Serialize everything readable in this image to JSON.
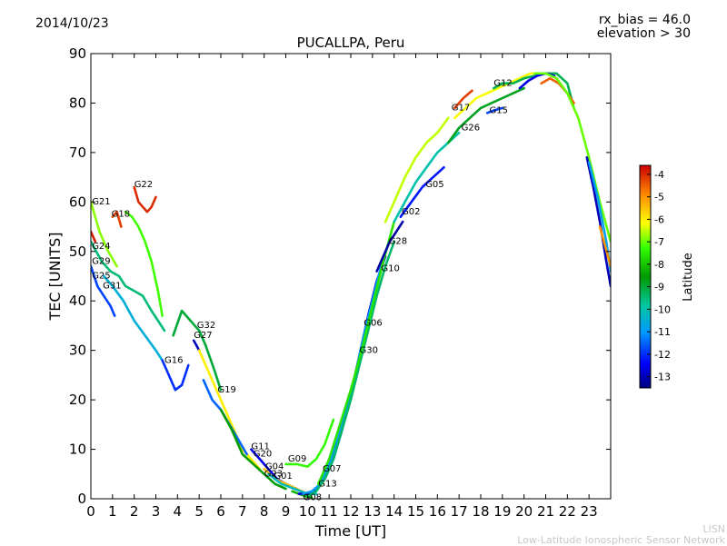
{
  "header": {
    "date": "2014/10/23",
    "bias": "rx_bias = 46.0",
    "elevation": "elevation > 30"
  },
  "footer": {
    "line1": "LISN",
    "line2": "Low-Latitude Ionospheric Sensor Network"
  },
  "chart_data": {
    "type": "scatter",
    "title": "PUCALLPA, Peru",
    "xlabel": "Time [UT]",
    "ylabel": "TEC [UNITS]",
    "xlim": [
      0,
      24
    ],
    "ylim": [
      0,
      90
    ],
    "x_ticks": [
      "0",
      "1",
      "2",
      "3",
      "4",
      "5",
      "6",
      "7",
      "8",
      "9",
      "10",
      "11",
      "12",
      "13",
      "14",
      "15",
      "16",
      "17",
      "18",
      "19",
      "20",
      "21",
      "22",
      "23"
    ],
    "y_ticks": [
      "0",
      "10",
      "20",
      "30",
      "40",
      "50",
      "60",
      "70",
      "80",
      "90"
    ],
    "colorbar": {
      "label": "Latitude",
      "range": [
        -13.5,
        -3.6
      ],
      "ticks": [
        "-4",
        "-5",
        "-6",
        "-7",
        "-8",
        "-9",
        "-10",
        "-11",
        "-12",
        "-13"
      ]
    },
    "satellite_labels": [
      {
        "name": "G21",
        "x": 0.05,
        "y": 59.5
      },
      {
        "name": "G24",
        "x": 0.05,
        "y": 50.5
      },
      {
        "name": "G29",
        "x": 0.05,
        "y": 47.5
      },
      {
        "name": "G25",
        "x": 0.05,
        "y": 44.5
      },
      {
        "name": "G31",
        "x": 0.55,
        "y": 42.5
      },
      {
        "name": "G18",
        "x": 0.95,
        "y": 57.0
      },
      {
        "name": "G22",
        "x": 2.0,
        "y": 63.0
      },
      {
        "name": "G16",
        "x": 3.4,
        "y": 27.5
      },
      {
        "name": "G32",
        "x": 4.9,
        "y": 34.5
      },
      {
        "name": "G27",
        "x": 4.75,
        "y": 32.5
      },
      {
        "name": "G19",
        "x": 5.85,
        "y": 21.5
      },
      {
        "name": "G11",
        "x": 7.4,
        "y": 10.0
      },
      {
        "name": "G20",
        "x": 7.5,
        "y": 8.5
      },
      {
        "name": "G04",
        "x": 8.05,
        "y": 6.0
      },
      {
        "name": "G23",
        "x": 8.0,
        "y": 4.5
      },
      {
        "name": "G01",
        "x": 8.45,
        "y": 4.0
      },
      {
        "name": "G09",
        "x": 9.1,
        "y": 7.5
      },
      {
        "name": "G07",
        "x": 10.7,
        "y": 5.5
      },
      {
        "name": "G13",
        "x": 10.5,
        "y": 2.5
      },
      {
        "name": "G08",
        "x": 9.8,
        "y": -0.3
      },
      {
        "name": "G30",
        "x": 12.4,
        "y": 29.5
      },
      {
        "name": "G06",
        "x": 12.6,
        "y": 35.0
      },
      {
        "name": "G10",
        "x": 13.4,
        "y": 46.0
      },
      {
        "name": "G28",
        "x": 13.75,
        "y": 51.5
      },
      {
        "name": "G02",
        "x": 14.35,
        "y": 57.5
      },
      {
        "name": "G05",
        "x": 15.45,
        "y": 63.0
      },
      {
        "name": "G26",
        "x": 17.1,
        "y": 74.5
      },
      {
        "name": "G17",
        "x": 16.65,
        "y": 78.5
      },
      {
        "name": "G15",
        "x": 18.4,
        "y": 78.0
      },
      {
        "name": "G12",
        "x": 18.6,
        "y": 83.5
      }
    ],
    "series": [
      {
        "name": "G21",
        "lat": -6.8,
        "x": [
          0.0,
          0.4,
          0.8,
          1.2
        ],
        "y": [
          60,
          54,
          50,
          47
        ]
      },
      {
        "name": "G24",
        "lat": -3.9,
        "x": [
          0.0,
          0.2
        ],
        "y": [
          54,
          52
        ]
      },
      {
        "name": "G29",
        "lat": -9.5,
        "x": [
          0.0,
          0.5,
          0.9,
          1.3,
          1.6,
          2.0,
          2.4,
          2.8,
          3.1,
          3.4
        ],
        "y": [
          52,
          48,
          46,
          45,
          43,
          42,
          41,
          38,
          36,
          34
        ]
      },
      {
        "name": "G25",
        "lat": -11.8,
        "x": [
          0.0,
          0.3,
          0.6,
          0.9,
          1.1
        ],
        "y": [
          47,
          43,
          41,
          39,
          37
        ]
      },
      {
        "name": "G31",
        "lat": -10.5,
        "x": [
          0.6,
          1.0,
          1.5,
          2.0,
          2.5,
          3.0,
          3.3
        ],
        "y": [
          45,
          43,
          40,
          36,
          33,
          30,
          28
        ]
      },
      {
        "name": "G18",
        "lat": -4.2,
        "x": [
          1.0,
          1.2,
          1.4
        ],
        "y": [
          57,
          58,
          55
        ]
      },
      {
        "name": "G22",
        "lat": -4.0,
        "x": [
          2.0,
          2.2,
          2.4,
          2.6,
          2.8,
          3.0
        ],
        "y": [
          63,
          60,
          59,
          58,
          59,
          61
        ]
      },
      {
        "name": "G18b",
        "lat": -7.2,
        "x": [
          1.6,
          1.9,
          2.2,
          2.5,
          2.8,
          3.1,
          3.3
        ],
        "y": [
          58,
          57,
          55,
          52,
          48,
          42,
          37
        ]
      },
      {
        "name": "G16",
        "lat": -12.0,
        "x": [
          3.3,
          3.6,
          3.9,
          4.2,
          4.5
        ],
        "y": [
          28,
          25,
          22,
          23,
          27
        ]
      },
      {
        "name": "G32",
        "lat": -9.0,
        "x": [
          3.8,
          4.2,
          4.6,
          5.0,
          5.3,
          5.7,
          6.0
        ],
        "y": [
          33,
          38,
          36,
          34,
          31,
          26,
          22
        ]
      },
      {
        "name": "G27",
        "lat": -13.0,
        "x": [
          4.75,
          5.0
        ],
        "y": [
          32,
          30
        ]
      },
      {
        "name": "G19",
        "lat": -6.0,
        "x": [
          5.0,
          5.4,
          5.8,
          6.2,
          6.6,
          7.0,
          7.4,
          7.8
        ],
        "y": [
          30,
          26,
          22,
          18,
          14,
          10,
          8,
          6
        ]
      },
      {
        "name": "G23",
        "lat": -11.5,
        "x": [
          5.2,
          5.6,
          6.0,
          6.4,
          6.8,
          7.2
        ],
        "y": [
          24,
          20,
          18,
          15,
          12,
          9
        ]
      },
      {
        "name": "G11",
        "lat": -8.5,
        "x": [
          6.0,
          6.5,
          7.0,
          7.5,
          8.0,
          8.5,
          9.0
        ],
        "y": [
          18,
          14,
          9,
          7,
          5,
          3,
          2
        ]
      },
      {
        "name": "G20",
        "lat": -12.5,
        "x": [
          7.4,
          7.8,
          8.2,
          8.6,
          9.0,
          9.5
        ],
        "y": [
          10,
          8,
          6,
          4,
          3,
          2
        ]
      },
      {
        "name": "G04",
        "lat": -5.5,
        "x": [
          8.0,
          8.5,
          9.0,
          9.5,
          10.0
        ],
        "y": [
          6,
          4,
          3,
          2,
          1
        ]
      },
      {
        "name": "G01",
        "lat": -10.2,
        "x": [
          8.2,
          8.8,
          9.4,
          10.0,
          10.4
        ],
        "y": [
          5,
          3,
          2,
          1,
          1
        ]
      },
      {
        "name": "G09",
        "lat": -7.3,
        "x": [
          9.0,
          9.5,
          10.0,
          10.4,
          10.8,
          11.2
        ],
        "y": [
          7,
          7,
          6.5,
          8,
          11,
          16
        ]
      },
      {
        "name": "G08",
        "lat": -8.2,
        "x": [
          9.3,
          9.6,
          9.9,
          10.2
        ],
        "y": [
          1.5,
          1,
          0.5,
          0.3
        ]
      },
      {
        "name": "G13",
        "lat": -12.8,
        "x": [
          9.6,
          10.0,
          10.4,
          10.8,
          11.2,
          11.6,
          12.0,
          12.4,
          12.8,
          13.2,
          13.6
        ],
        "y": [
          1,
          1,
          2,
          4,
          8,
          14,
          21,
          29,
          37,
          44,
          49
        ]
      },
      {
        "name": "G07",
        "lat": -11.0,
        "x": [
          9.8,
          10.2,
          10.6,
          11.0,
          11.4,
          11.8,
          12.2,
          12.6,
          13.0,
          13.4
        ],
        "y": [
          1,
          1.5,
          3,
          7,
          12,
          18,
          25,
          33,
          40,
          47
        ]
      },
      {
        "name": "G30",
        "lat": -9.4,
        "x": [
          10.0,
          10.4,
          10.8,
          11.2,
          11.6,
          12.0,
          12.4,
          12.8,
          13.2,
          13.6,
          14.0
        ],
        "y": [
          0.5,
          1.5,
          4,
          8,
          14,
          20,
          27,
          34,
          41,
          47,
          52
        ]
      },
      {
        "name": "G06",
        "lat": -7.6,
        "x": [
          10.5,
          11.0,
          11.5,
          12.0,
          12.5,
          13.0,
          13.5,
          14.0
        ],
        "y": [
          3,
          8,
          15,
          22,
          30,
          39,
          48,
          56
        ]
      },
      {
        "name": "G10",
        "lat": -13.2,
        "x": [
          13.2,
          13.5,
          13.8,
          14.1,
          14.4
        ],
        "y": [
          46,
          49,
          52,
          54,
          56
        ]
      },
      {
        "name": "G02",
        "lat": -6.5,
        "x": [
          13.6,
          14.0,
          14.5,
          15.0,
          15.5,
          16.0,
          16.5
        ],
        "y": [
          56,
          60,
          65,
          69,
          72,
          74,
          77
        ]
      },
      {
        "name": "G05",
        "lat": -12.2,
        "x": [
          14.3,
          14.8,
          15.3,
          15.8,
          16.3
        ],
        "y": [
          57,
          60,
          63,
          65,
          67
        ]
      },
      {
        "name": "G28",
        "lat": -10.0,
        "x": [
          14.0,
          14.5,
          15.0,
          15.5,
          16.0,
          16.5,
          17.0
        ],
        "y": [
          56,
          60,
          64,
          67,
          70,
          72,
          74
        ]
      },
      {
        "name": "G26",
        "lat": -8.8,
        "x": [
          16.5,
          17.0,
          17.5,
          18.0,
          18.5,
          19.0,
          19.5,
          20.0
        ],
        "y": [
          72,
          75,
          77,
          79,
          80,
          81,
          82,
          83
        ]
      },
      {
        "name": "G17",
        "lat": -4.2,
        "x": [
          16.8,
          17.2,
          17.6
        ],
        "y": [
          79,
          81,
          82.5
        ]
      },
      {
        "name": "G17b",
        "lat": -6.2,
        "x": [
          16.8,
          17.3,
          17.8,
          18.3,
          18.8,
          19.3,
          19.8,
          20.3,
          20.8
        ],
        "y": [
          77,
          79,
          81,
          82,
          83,
          84,
          85,
          86,
          86
        ]
      },
      {
        "name": "G15",
        "lat": -11.8,
        "x": [
          18.3,
          18.6,
          19.0
        ],
        "y": [
          78,
          78.5,
          79
        ]
      },
      {
        "name": "G12",
        "lat": -9.2,
        "x": [
          18.6,
          19.0,
          19.5,
          20.0,
          20.5,
          21.0,
          21.5,
          22.0,
          22.3
        ],
        "y": [
          83,
          84,
          84,
          85,
          85.5,
          86,
          86,
          84,
          79
        ]
      },
      {
        "name": "G12b",
        "lat": -12.6,
        "x": [
          19.8,
          20.2,
          20.6,
          21.0,
          21.4
        ],
        "y": [
          83,
          84.5,
          85.5,
          86,
          85.5
        ]
      },
      {
        "name": "G12c",
        "lat": -4.5,
        "x": [
          20.8,
          21.2,
          21.6,
          22.0,
          22.3
        ],
        "y": [
          84,
          85,
          84,
          82,
          80
        ]
      },
      {
        "name": "G23x",
        "lat": -7.0,
        "x": [
          20.5,
          21.0,
          21.5,
          22.0,
          22.5,
          23.0,
          23.5,
          24.0
        ],
        "y": [
          86,
          86,
          85,
          82,
          77,
          69,
          60,
          52
        ]
      },
      {
        "name": "G23y",
        "lat": -13.0,
        "x": [
          22.9,
          23.2,
          23.5,
          23.8,
          24.0
        ],
        "y": [
          69,
          63,
          56,
          48,
          43
        ]
      },
      {
        "name": "G23z",
        "lat": -10.8,
        "x": [
          23.0,
          23.4,
          23.8,
          24.0
        ],
        "y": [
          68,
          61,
          52,
          46
        ]
      },
      {
        "name": "G23w",
        "lat": -5.0,
        "x": [
          23.5,
          24.0
        ],
        "y": [
          55,
          47
        ]
      }
    ]
  }
}
